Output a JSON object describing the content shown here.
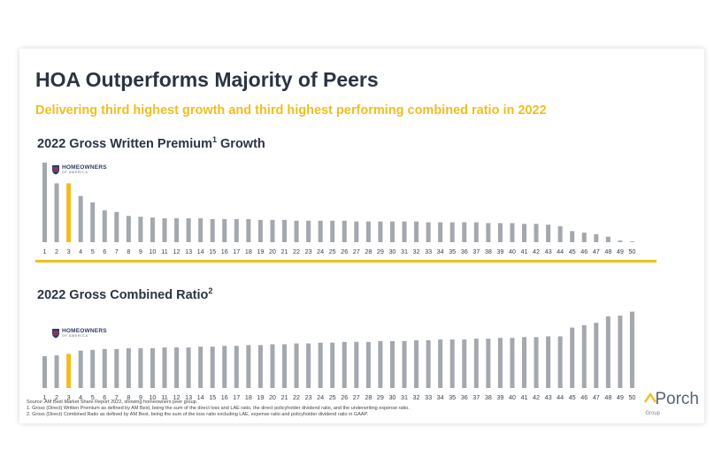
{
  "title": "HOA Outperforms Majority of Peers",
  "subtitle": "Delivering third highest growth and third highest performing combined ratio in 2022",
  "logo": {
    "main": "HOMEOWNERS",
    "sub": "OF AMERICA"
  },
  "footnotes": [
    "Source: AM Best Market Share Report 2022, showing homeowners peer group.",
    "1.        Gross (Direct) Written Premium as defined by AM Best, being the sum of the direct loss and LAE ratio, the direct policyholder dividend ratio, and the underwriting expense ratio.",
    "2.        Gross (Direct) Combined Ratio as defined by AM Best, being the sum of the loss ratio excluding LAE, expense ratio and policyholder dividend ratio in GAAP."
  ],
  "brand": {
    "name": "Porch",
    "sub": "Group"
  },
  "colors": {
    "bar": "#a3a8ae",
    "highlight": "#f1bd1f",
    "title": "#2b3442",
    "accent": "#f1bd1f"
  },
  "chart_data": [
    {
      "type": "bar",
      "title": "2022 Gross Written Premium",
      "title_sup": "1",
      "title_suffix": " Growth",
      "highlight_category": "3",
      "categories": [
        "1",
        "2",
        "3",
        "4",
        "5",
        "6",
        "7",
        "8",
        "9",
        "10",
        "11",
        "12",
        "13",
        "14",
        "15",
        "16",
        "17",
        "18",
        "19",
        "20",
        "21",
        "22",
        "23",
        "24",
        "25",
        "26",
        "27",
        "28",
        "29",
        "30",
        "31",
        "32",
        "33",
        "34",
        "35",
        "36",
        "37",
        "38",
        "39",
        "40",
        "41",
        "42",
        "43",
        "44",
        "45",
        "46",
        "47",
        "48",
        "49",
        "50"
      ],
      "values": [
        100,
        74,
        74,
        58,
        50,
        40,
        38,
        33,
        32,
        31,
        30,
        30,
        30,
        30,
        29,
        29,
        29,
        29,
        28,
        28,
        28,
        27,
        27,
        27,
        27,
        27,
        26,
        26,
        26,
        26,
        26,
        26,
        25,
        25,
        25,
        25,
        25,
        24,
        24,
        24,
        23,
        23,
        22,
        20,
        14,
        12,
        10,
        7,
        2,
        0
      ],
      "ylim": [
        0,
        100
      ],
      "grid": false
    },
    {
      "type": "bar",
      "title": "2022 Gross Combined Ratio",
      "title_sup": "2",
      "title_suffix": "",
      "highlight_category": "3",
      "categories": [
        "1",
        "2",
        "3",
        "4",
        "5",
        "6",
        "7",
        "8",
        "9",
        "10",
        "11",
        "12",
        "13",
        "14",
        "15",
        "16",
        "17",
        "18",
        "19",
        "20",
        "21",
        "22",
        "23",
        "24",
        "25",
        "26",
        "27",
        "28",
        "29",
        "30",
        "31",
        "32",
        "33",
        "34",
        "35",
        "36",
        "37",
        "38",
        "39",
        "40",
        "41",
        "42",
        "43",
        "44",
        "45",
        "46",
        "47",
        "48",
        "49",
        "50"
      ],
      "values": [
        40,
        41,
        43,
        47,
        48,
        49,
        49,
        50,
        50,
        50,
        51,
        51,
        51,
        52,
        52,
        53,
        53,
        54,
        54,
        55,
        55,
        56,
        56,
        57,
        57,
        58,
        58,
        58,
        59,
        59,
        59,
        60,
        60,
        61,
        61,
        61,
        62,
        62,
        63,
        63,
        64,
        64,
        65,
        65,
        76,
        79,
        82,
        90,
        91,
        96
      ],
      "ylim": [
        0,
        100
      ],
      "grid": false
    }
  ]
}
